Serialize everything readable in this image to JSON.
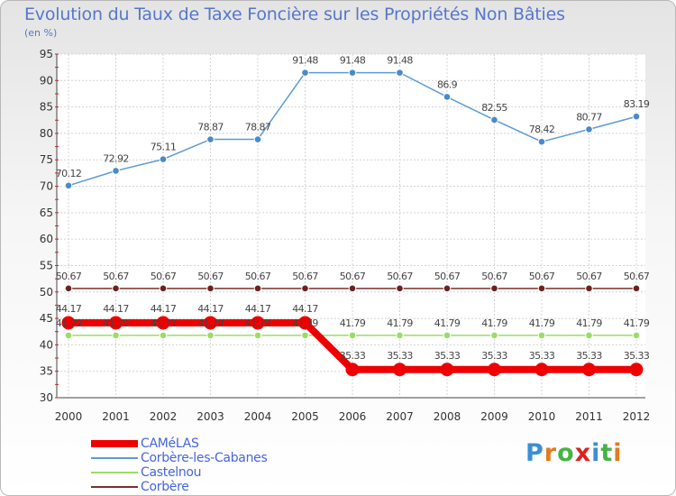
{
  "title": "Evolution du Taux de Taxe Foncière sur les Propriétés Non Bâties",
  "subtitle": "(en %)",
  "brand": {
    "letters": [
      "P",
      "r",
      "o",
      "x",
      "i",
      "t",
      "i"
    ],
    "colors": [
      "#3a8fd6",
      "#e07c20",
      "#47b347",
      "#e02020",
      "#3a8fd6",
      "#47b347",
      "#e07c20"
    ]
  },
  "chart_data": {
    "type": "line",
    "title": "Evolution du Taux de Taxe Foncière sur les Propriétés Non Bâties",
    "ylabel": "(en %)",
    "x": [
      "2000",
      "2001",
      "2002",
      "2003",
      "2004",
      "2005",
      "2006",
      "2007",
      "2008",
      "2009",
      "2010",
      "2011",
      "2012"
    ],
    "ylim": [
      30,
      95
    ],
    "yticks": [
      "30",
      "35",
      "40",
      "45",
      "50",
      "55",
      "60",
      "65",
      "70",
      "75",
      "80",
      "85",
      "90",
      "95"
    ],
    "grid": true,
    "legend_position": "bottom-left",
    "series": [
      {
        "name": "CAMéLAS",
        "color": "#ee0000",
        "values": [
          44.17,
          44.17,
          44.17,
          44.17,
          44.17,
          44.17,
          35.33,
          35.33,
          35.33,
          35.33,
          35.33,
          35.33,
          35.33
        ],
        "labels": [
          "44.17",
          "44.17",
          "44.17",
          "44.17",
          "44.17",
          "44.17",
          "35.33",
          "35.33",
          "35.33",
          "35.33",
          "35.33",
          "35.33",
          "35.33"
        ]
      },
      {
        "name": "Corbère-les-Cabanes",
        "color": "#5b9bd5",
        "values": [
          70.12,
          72.92,
          75.11,
          78.87,
          78.87,
          91.48,
          91.48,
          91.48,
          86.9,
          82.55,
          78.42,
          80.77,
          83.19
        ],
        "labels": [
          "70.12",
          "72.92",
          "75.11",
          "78.87",
          "78.87",
          "91.48",
          "91.48",
          "91.48",
          "86.9",
          "82.55",
          "78.42",
          "80.77",
          "83.19"
        ]
      },
      {
        "name": "Castelnou",
        "color": "#99dd66",
        "values": [
          41.79,
          41.79,
          41.79,
          41.79,
          41.79,
          41.79,
          41.79,
          41.79,
          41.79,
          41.79,
          41.79,
          41.79,
          41.79
        ],
        "labels": [
          "41.79",
          "41.79",
          "41.79",
          "41.79",
          "41.79",
          "41.79",
          "41.79",
          "41.79",
          "41.79",
          "41.79",
          "41.79",
          "41.79",
          "41.79"
        ]
      },
      {
        "name": "Corbère",
        "color": "#7a2e2e",
        "values": [
          50.67,
          50.67,
          50.67,
          50.67,
          50.67,
          50.67,
          50.67,
          50.67,
          50.67,
          50.67,
          50.67,
          50.67,
          50.67
        ],
        "labels": [
          "50.67",
          "50.67",
          "50.67",
          "50.67",
          "50.67",
          "50.67",
          "50.67",
          "50.67",
          "50.67",
          "50.67",
          "50.67",
          "50.67",
          "50.67"
        ]
      }
    ]
  }
}
